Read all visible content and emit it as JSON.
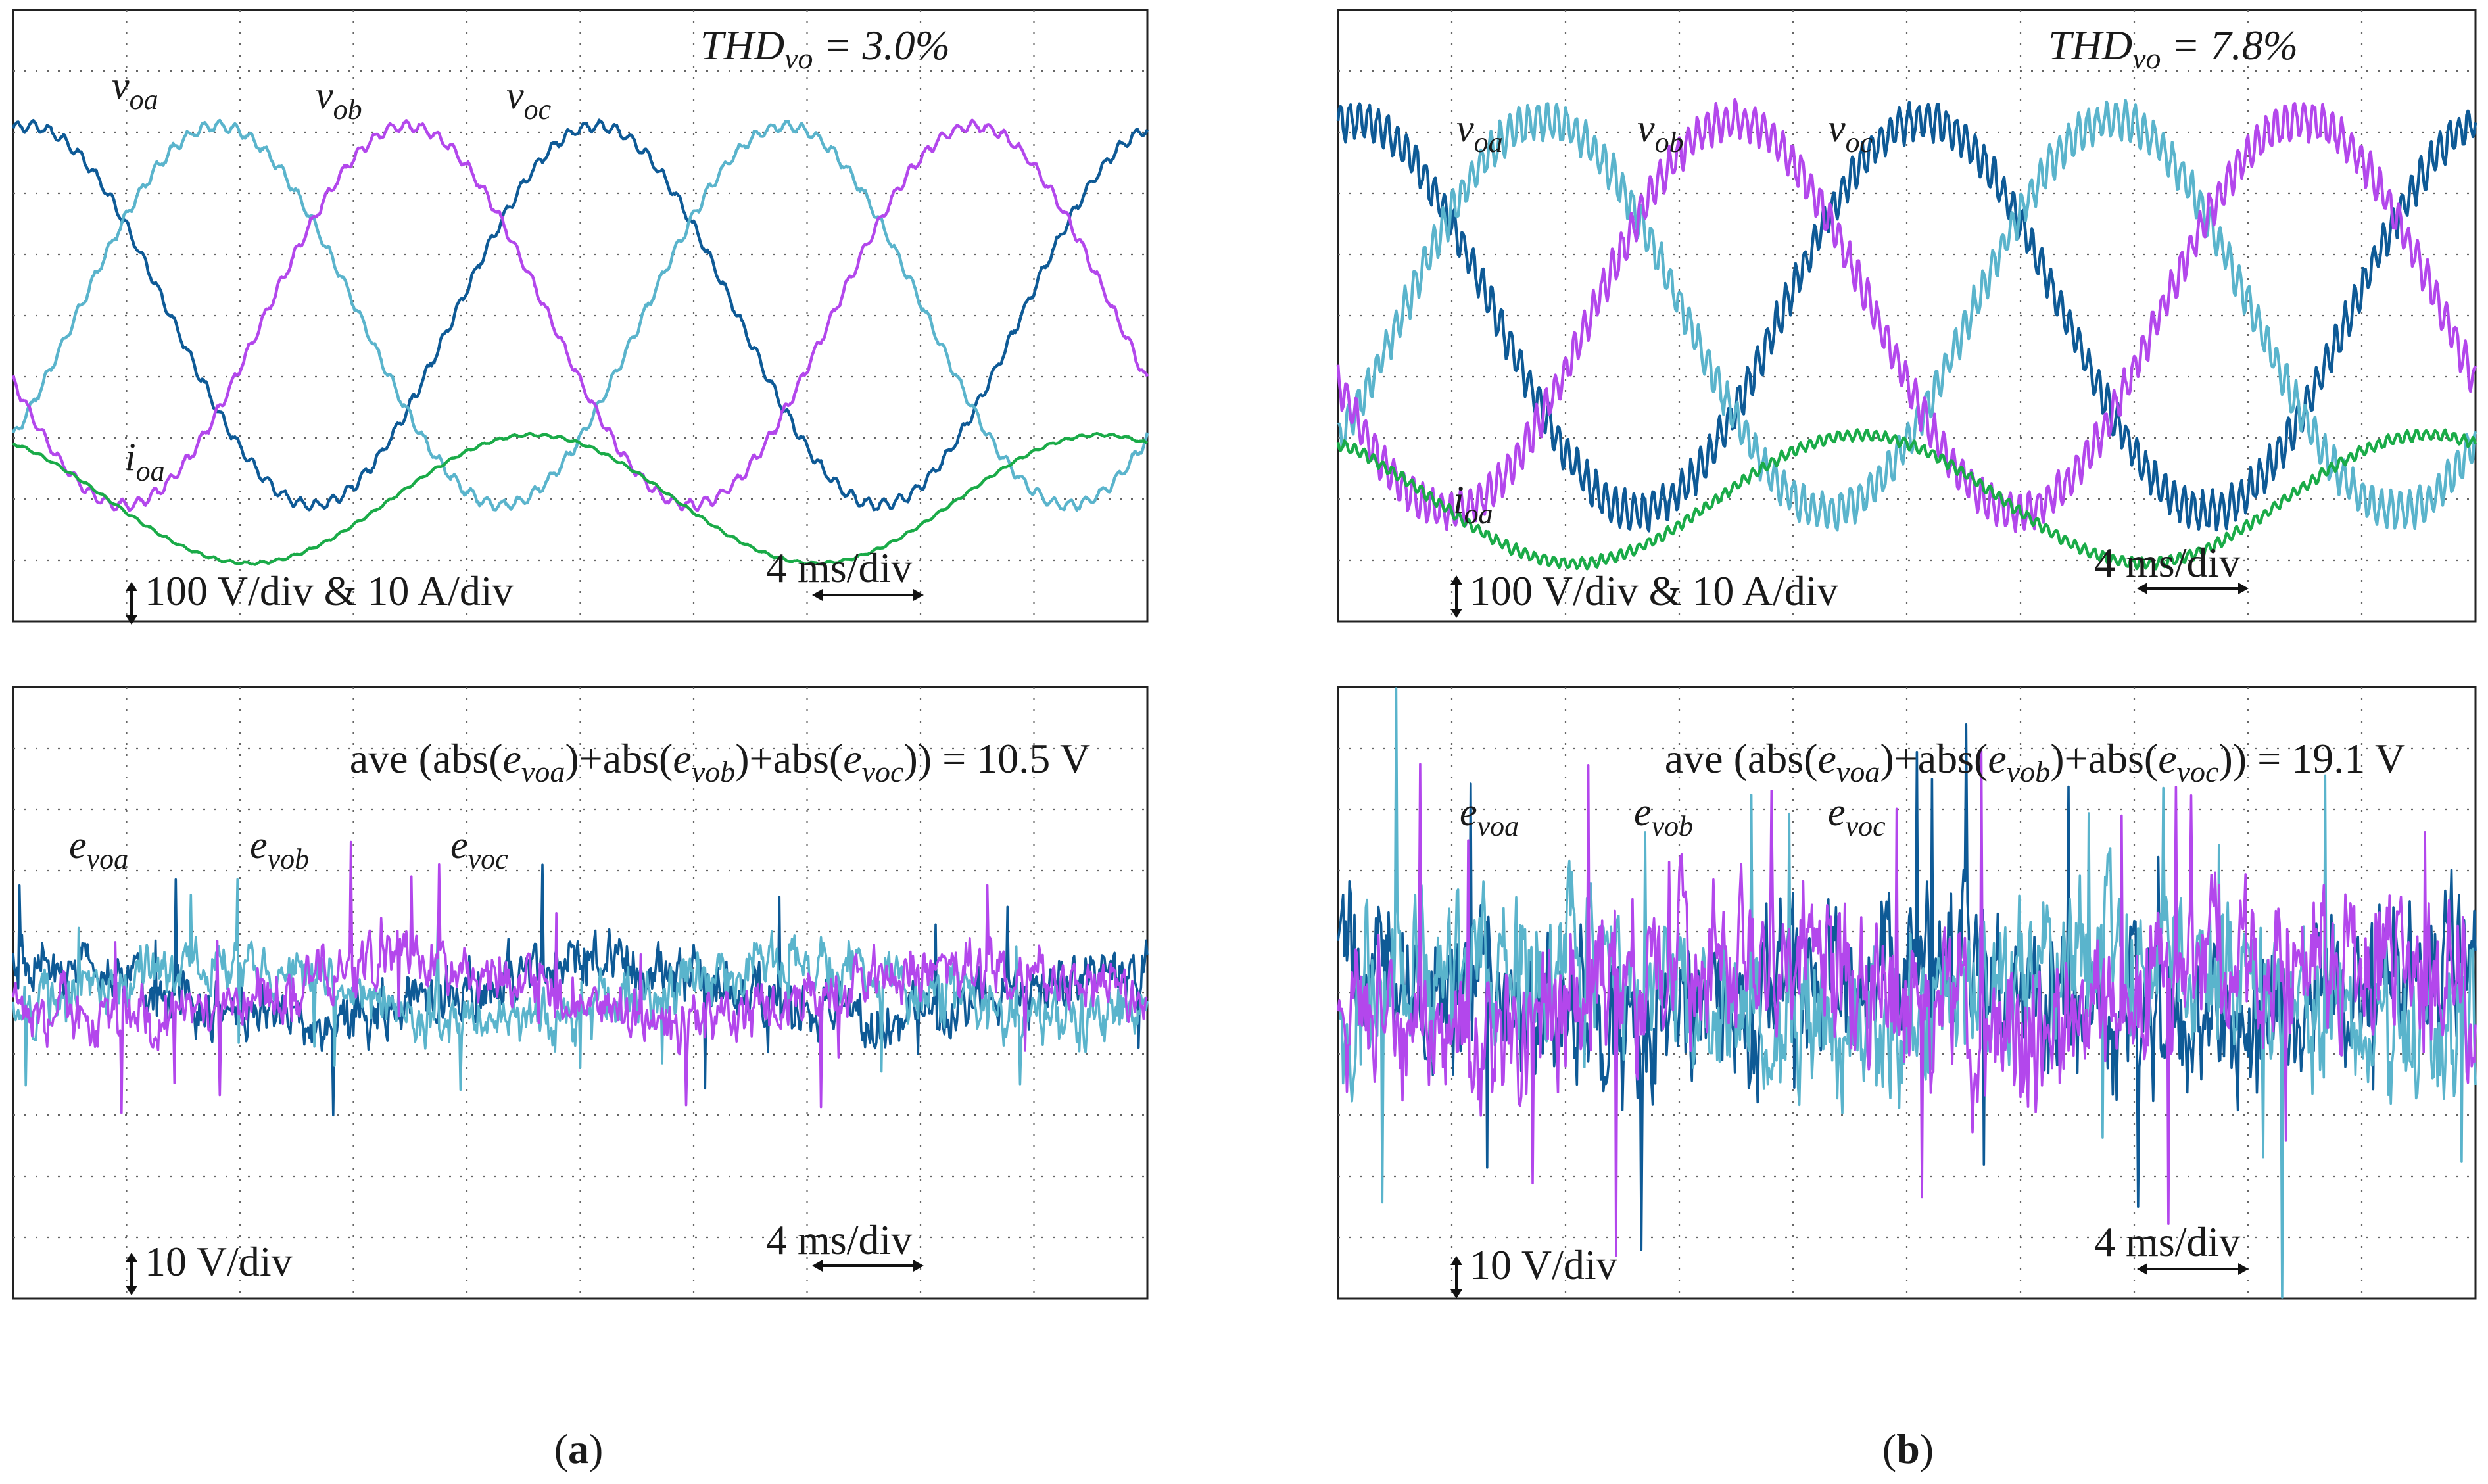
{
  "figure": {
    "caption_a": "a",
    "caption_b": "b"
  },
  "colors": {
    "phase_a": "#0e5a96",
    "phase_b": "#5ab4cc",
    "phase_c": "#b347ec",
    "current": "#1aab48",
    "grid": "#666666",
    "frame": "#222222"
  },
  "chart_data": [
    {
      "id": "a-top",
      "type": "line",
      "title": "THD = 3.0%",
      "annotation": {
        "symbol": "THD",
        "subscript": "vo",
        "value": " = 3.0%"
      },
      "series": [
        {
          "name": "v_oa",
          "base": "v",
          "sub": "oa",
          "amplitude_div": 3.1,
          "phase_deg": 0,
          "offset_div": 0,
          "ripple_div": 0.08,
          "ripple_cycles": 18
        },
        {
          "name": "v_ob",
          "base": "v",
          "sub": "ob",
          "amplitude_div": 3.1,
          "phase_deg": -120,
          "offset_div": 0,
          "ripple_div": 0.08,
          "ripple_cycles": 18
        },
        {
          "name": "v_oc",
          "base": "v",
          "sub": "oc",
          "amplitude_div": 3.1,
          "phase_deg": 120,
          "offset_div": 0,
          "ripple_div": 0.08,
          "ripple_cycles": 18
        },
        {
          "name": "i_oa",
          "base": "i",
          "sub": "oa",
          "amplitude_div": 1.05,
          "phase_deg": 40,
          "offset_div": -3.0,
          "ripple_div": 0.02,
          "ripple_cycles": 18
        }
      ],
      "x_range_ms": [
        0,
        40
      ],
      "period_ms": 20,
      "phase_start_deg": 80,
      "y_range_div": [
        -5,
        5
      ],
      "scale_text": "100 V/div & 10 A/div",
      "time_text": "4 ms/div"
    },
    {
      "id": "a-bottom",
      "type": "line",
      "title": "ave (abs(e_voa)+abs(e_vob)+abs(e_voc)) = 10.5 V",
      "annotation": {
        "parts": [
          "ave (abs(",
          "e",
          "voa",
          ")+abs(",
          "e",
          "vob",
          ")+abs(",
          "e",
          "voc",
          ")) = 10.5 V"
        ]
      },
      "series": [
        {
          "name": "e_voa",
          "base": "e",
          "sub": "voa",
          "trend_div": 0.45,
          "trend_phase_deg": 0,
          "noise_div": 0.55
        },
        {
          "name": "e_vob",
          "base": "e",
          "sub": "vob",
          "trend_div": 0.45,
          "trend_phase_deg": -120,
          "noise_div": 0.55
        },
        {
          "name": "e_voc",
          "base": "e",
          "sub": "voc",
          "trend_div": 0.45,
          "trend_phase_deg": 120,
          "noise_div": 0.55
        }
      ],
      "x_range_ms": [
        0,
        40
      ],
      "y_range_div": [
        -5,
        5
      ],
      "scale_text": "10 V/div",
      "time_text": "4 ms/div"
    },
    {
      "id": "b-top",
      "type": "line",
      "title": "THD = 7.8%",
      "annotation": {
        "symbol": "THD",
        "subscript": "vo",
        "value": " = 7.8%"
      },
      "series": [
        {
          "name": "v_oa",
          "base": "v",
          "sub": "oa",
          "amplitude_div": 3.2,
          "phase_deg": 0,
          "offset_div": 0,
          "ripple_div": 0.28,
          "ripple_cycles": 30
        },
        {
          "name": "v_ob",
          "base": "v",
          "sub": "ob",
          "amplitude_div": 3.2,
          "phase_deg": -120,
          "offset_div": 0,
          "ripple_div": 0.28,
          "ripple_cycles": 30
        },
        {
          "name": "v_oc",
          "base": "v",
          "sub": "oc",
          "amplitude_div": 3.2,
          "phase_deg": 120,
          "offset_div": 0,
          "ripple_div": 0.28,
          "ripple_cycles": 30
        },
        {
          "name": "i_oa",
          "base": "i",
          "sub": "oa",
          "amplitude_div": 1.05,
          "phase_deg": 40,
          "offset_div": -3.0,
          "ripple_div": 0.08,
          "ripple_cycles": 30
        }
      ],
      "x_range_ms": [
        0,
        40
      ],
      "period_ms": 20,
      "phase_start_deg": 80,
      "y_range_div": [
        -5,
        5
      ],
      "scale_text": "100 V/div & 10 A/div",
      "time_text": "4 ms/div"
    },
    {
      "id": "b-bottom",
      "type": "line",
      "title": "ave (abs(e_voa)+abs(e_vob)+abs(e_voc)) = 19.1 V",
      "annotation": {
        "parts": [
          "ave (abs(",
          "e",
          "voa",
          ")+abs(",
          "e",
          "vob",
          ")+abs(",
          "e",
          "voc",
          ")) = 19.1 V"
        ]
      },
      "series": [
        {
          "name": "e_voa",
          "base": "e",
          "sub": "voa",
          "trend_div": 0.6,
          "trend_phase_deg": 0,
          "noise_div": 1.5
        },
        {
          "name": "e_vob",
          "base": "e",
          "sub": "vob",
          "trend_div": 0.6,
          "trend_phase_deg": -120,
          "noise_div": 1.5
        },
        {
          "name": "e_voc",
          "base": "e",
          "sub": "voc",
          "trend_div": 0.6,
          "trend_phase_deg": 120,
          "noise_div": 1.5
        }
      ],
      "x_range_ms": [
        0,
        40
      ],
      "y_range_div": [
        -5,
        5
      ],
      "scale_text": "10 V/div",
      "time_text": "4 ms/div"
    }
  ]
}
